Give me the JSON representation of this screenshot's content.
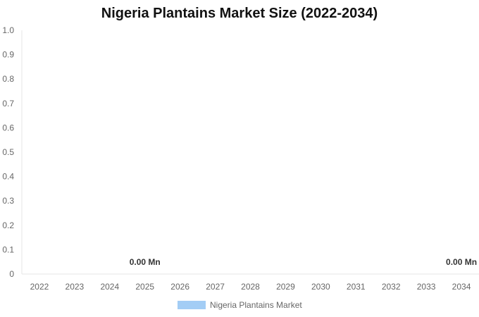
{
  "chart_data": {
    "type": "bar",
    "title": "Nigeria Plantains Market Size (2022-2034)",
    "categories": [
      "2022",
      "2023",
      "2024",
      "2025",
      "2026",
      "2027",
      "2028",
      "2029",
      "2030",
      "2031",
      "2032",
      "2033",
      "2034"
    ],
    "series": [
      {
        "name": "Nigeria Plantains Market",
        "color": "#a3cdf5",
        "values": [
          0,
          0,
          0,
          0,
          0,
          0,
          0,
          0,
          0,
          0,
          0,
          0,
          0
        ]
      }
    ],
    "y_ticks": [
      "0",
      "0.1",
      "0.2",
      "0.3",
      "0.4",
      "0.5",
      "0.6",
      "0.7",
      "0.8",
      "0.9",
      "1.0"
    ],
    "ylim": [
      0,
      1.0
    ],
    "data_labels": [
      {
        "category": "2025",
        "text": "0.00 Mn"
      },
      {
        "category": "2034",
        "text": "0.00 Mn"
      }
    ],
    "grid": false,
    "legend_position": "bottom"
  }
}
